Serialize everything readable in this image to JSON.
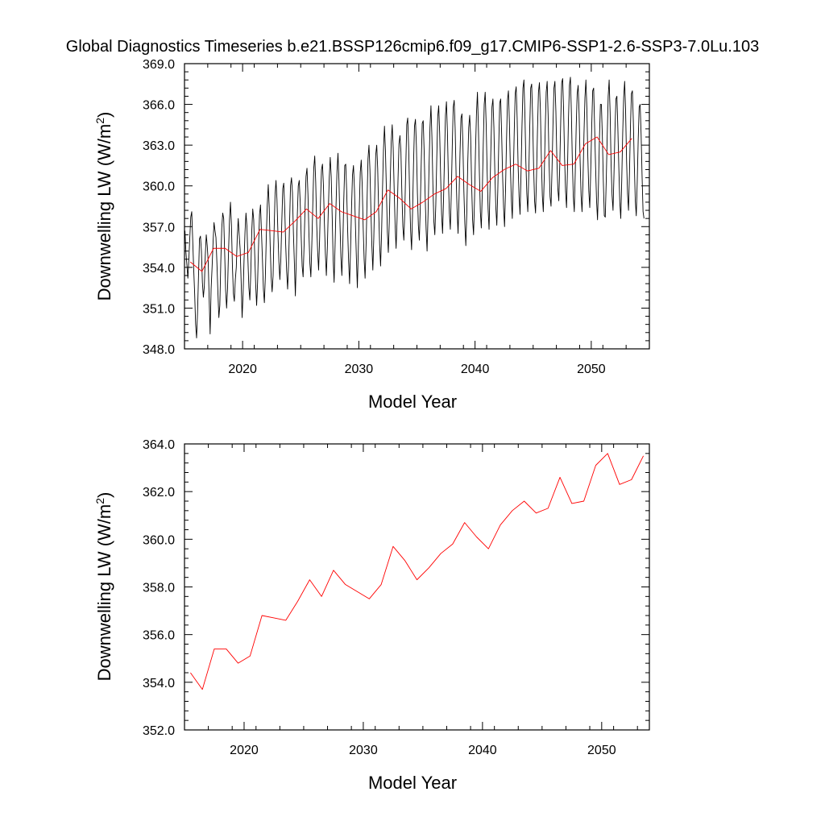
{
  "figure": {
    "title": "Global Diagnostics Timeseries b.e21.BSSP126cmip6.f09_g17.CMIP6-SSP1-2.6-SSP3-7.0Lu.103"
  },
  "colors": {
    "monthly_line": "#000000",
    "annual_line": "#ff0000",
    "frame": "#000000"
  },
  "chart_data": [
    {
      "type": "line",
      "title": "",
      "xlabel": "Model Year",
      "ylabel": "Downwelling LW (W/m²)",
      "ylabel_parts": {
        "base": "Downwelling LW (W/m",
        "sup": "2",
        "close": ")"
      },
      "xlim": [
        2015,
        2055
      ],
      "ylim": [
        348,
        369
      ],
      "xticks": [
        2020,
        2030,
        2040,
        2050
      ],
      "xtick_labels": [
        "2020",
        "2030",
        "2040",
        "2050"
      ],
      "yticks": [
        348,
        351,
        354,
        357,
        360,
        363,
        366,
        369
      ],
      "ytick_labels": [
        "348.0",
        "351.0",
        "354.0",
        "357.0",
        "360.0",
        "363.0",
        "366.0",
        "369.0"
      ],
      "grid": false,
      "series": [
        {
          "kind": "monthly",
          "x_start": 2015.04,
          "x_step": 0.0833333,
          "values": [
            356.7,
            355.1,
            354.2,
            353.2,
            354.6,
            356.2,
            357.7,
            358.1,
            356.0,
            353.9,
            352.1,
            349.8,
            348.8,
            350.7,
            353.4,
            356.1,
            356.3,
            355.2,
            352.9,
            351.8,
            352.6,
            354.9,
            356.4,
            355.6,
            354.4,
            351.7,
            349.1,
            352.4,
            354.0,
            355.8,
            357.3,
            356.7,
            356.2,
            354.3,
            352.2,
            350.3,
            351.2,
            354.4,
            356.9,
            358.0,
            357.6,
            355.1,
            352.3,
            351.0,
            352.5,
            355.2,
            357.5,
            358.8,
            357.1,
            354.1,
            352.1,
            351.5,
            353.1,
            354.0,
            356.2,
            357.6,
            356.4,
            355.3,
            353.0,
            350.3,
            352.0,
            354.5,
            356.6,
            358.0,
            357.0,
            354.6,
            352.5,
            351.6,
            353.7,
            356.7,
            358.3,
            357.5,
            355.0,
            352.8,
            351.2,
            352.9,
            355.6,
            357.9,
            358.6,
            356.6,
            354.6,
            352.4,
            351.4,
            353.3,
            356.3,
            358.6,
            360.1,
            358.4,
            355.6,
            353.3,
            352.2,
            353.4,
            356.6,
            359.3,
            360.4,
            359.0,
            356.5,
            354.4,
            353.1,
            354.6,
            357.4,
            359.8,
            360.2,
            358.4,
            355.7,
            353.7,
            352.4,
            354.3,
            357.2,
            360.0,
            360.6,
            359.5,
            356.5,
            354.3,
            351.9,
            354.8,
            357.8,
            360.0,
            360.4,
            358.8,
            356.3,
            354.1,
            353.3,
            355.6,
            358.4,
            360.7,
            361.3,
            359.4,
            356.5,
            354.3,
            353.3,
            355.7,
            358.6,
            361.3,
            362.2,
            360.3,
            357.2,
            355.2,
            353.8,
            356.0,
            359.0,
            361.2,
            361.6,
            360.0,
            357.2,
            355.0,
            353.4,
            355.4,
            358.2,
            360.6,
            362.1,
            360.7,
            357.8,
            354.6,
            352.9,
            355.6,
            358.6,
            361.1,
            362.4,
            360.4,
            357.4,
            354.8,
            353.4,
            355.7,
            359.0,
            361.5,
            361.6,
            359.6,
            356.7,
            354.4,
            352.8,
            355.4,
            358.4,
            360.8,
            361.5,
            359.8,
            357.2,
            354.7,
            352.5,
            355.3,
            358.3,
            361.0,
            361.9,
            360.1,
            357.0,
            354.6,
            353.2,
            355.6,
            358.8,
            362.0,
            363.0,
            361.2,
            358.2,
            355.6,
            353.8,
            356.2,
            359.5,
            362.3,
            363.0,
            361.3,
            358.2,
            355.7,
            354.1,
            356.4,
            359.8,
            362.7,
            364.4,
            362.6,
            359.7,
            356.6,
            355.1,
            357.4,
            360.5,
            363.3,
            364.5,
            362.8,
            359.8,
            357.1,
            355.4,
            357.5,
            360.5,
            363.1,
            363.7,
            362.5,
            359.4,
            357.0,
            356.0,
            358.1,
            361.4,
            364.5,
            365.0,
            362.8,
            359.3,
            356.7,
            355.3,
            358.0,
            361.6,
            364.4,
            364.9,
            362.9,
            359.5,
            357.1,
            356.0,
            358.5,
            361.8,
            364.6,
            364.8,
            362.5,
            359.3,
            356.8,
            355.2,
            357.9,
            361.3,
            364.3,
            365.9,
            363.6,
            360.1,
            357.4,
            356.4,
            358.6,
            362.0,
            365.1,
            365.9,
            363.9,
            360.7,
            357.9,
            356.5,
            359.0,
            362.2,
            365.2,
            366.2,
            364.0,
            360.6,
            358.0,
            356.8,
            359.4,
            362.9,
            365.8,
            366.3,
            364.2,
            360.7,
            358.2,
            356.5,
            359.1,
            362.4,
            365.0,
            365.3,
            363.0,
            359.6,
            357.2,
            355.6,
            358.0,
            361.7,
            364.3,
            365.2,
            363.6,
            360.1,
            357.5,
            356.4,
            359.0,
            362.6,
            365.3,
            366.9,
            364.3,
            361.0,
            358.1,
            356.9,
            359.5,
            363.0,
            366.0,
            366.9,
            364.6,
            361.1,
            358.3,
            356.8,
            359.8,
            363.1,
            365.8,
            366.4,
            364.3,
            360.9,
            358.4,
            357.1,
            359.6,
            363.0,
            366.1,
            366.4,
            363.8,
            360.7,
            358.4,
            357.0,
            359.7,
            363.3,
            366.3,
            367.0,
            364.7,
            361.4,
            359.0,
            357.6,
            360.5,
            364.0,
            366.8,
            367.3,
            365.0,
            361.5,
            359.2,
            357.9,
            360.9,
            364.4,
            367.2,
            367.8,
            365.3,
            361.8,
            359.4,
            358.1,
            360.8,
            364.3,
            367.2,
            367.5,
            365.0,
            361.4,
            358.9,
            358.0,
            360.7,
            364.1,
            366.9,
            367.6,
            365.6,
            362.0,
            359.3,
            358.1,
            360.7,
            364.2,
            366.9,
            367.7,
            365.2,
            361.6,
            359.2,
            358.5,
            361.2,
            364.5,
            367.2,
            367.7,
            365.5,
            362.0,
            359.8,
            358.9,
            361.5,
            364.8,
            367.6,
            367.9,
            365.5,
            362.0,
            359.6,
            358.4,
            361.3,
            365.0,
            367.4,
            368.0,
            365.4,
            361.8,
            359.2,
            358.1,
            361.0,
            364.4,
            366.8,
            367.4,
            365.3,
            361.9,
            359.3,
            358.1,
            360.4,
            363.8,
            366.5,
            367.8,
            365.7,
            362.1,
            359.6,
            358.4,
            361.2,
            364.4,
            367.0,
            367.2,
            364.3,
            361.4,
            358.9,
            357.5,
            360.2,
            363.6,
            366.0,
            366.0,
            363.6,
            360.3,
            357.8,
            357.7,
            360.4,
            363.7,
            366.6,
            367.8,
            365.4,
            361.6,
            359.3,
            358.2,
            360.9,
            364.1,
            366.4,
            366.6,
            364.2,
            361.3,
            358.8,
            357.6,
            360.4,
            363.9,
            366.5,
            367.7,
            365.5,
            361.8,
            359.4,
            358.2,
            361.0,
            364.4,
            366.8,
            367.0,
            364.7,
            361.5,
            358.9,
            357.8,
            360.3,
            363.4,
            365.8,
            366.0,
            363.8,
            360.7,
            358.1,
            357.6
          ]
        },
        {
          "kind": "annual",
          "x": [
            2015.5,
            2016.5,
            2017.5,
            2018.5,
            2019.5,
            2020.5,
            2021.5,
            2022.5,
            2023.5,
            2024.5,
            2025.5,
            2026.5,
            2027.5,
            2028.5,
            2029.5,
            2030.5,
            2031.5,
            2032.5,
            2033.5,
            2034.5,
            2035.5,
            2036.5,
            2037.5,
            2038.5,
            2039.5,
            2040.5,
            2041.5,
            2042.5,
            2043.5,
            2044.5,
            2045.5,
            2046.5,
            2047.5,
            2048.5,
            2049.5,
            2050.5,
            2051.5,
            2052.5,
            2053.5
          ],
          "values": [
            354.4,
            353.7,
            355.4,
            355.4,
            354.8,
            355.1,
            356.8,
            356.7,
            356.6,
            357.4,
            358.3,
            357.6,
            358.7,
            358.1,
            357.8,
            357.5,
            358.1,
            359.7,
            359.1,
            358.3,
            358.8,
            359.4,
            359.8,
            360.7,
            360.1,
            359.6,
            360.6,
            361.2,
            361.6,
            361.1,
            361.3,
            362.6,
            361.5,
            361.6,
            363.1,
            363.6,
            362.3,
            362.5,
            363.5
          ]
        }
      ]
    },
    {
      "type": "line",
      "title": "",
      "xlabel": "Model Year",
      "ylabel": "Downwelling LW (W/m²)",
      "ylabel_parts": {
        "base": "Downwelling LW (W/m",
        "sup": "2",
        "close": ")"
      },
      "xlim": [
        2015,
        2054
      ],
      "ylim": [
        352,
        364
      ],
      "xticks": [
        2020,
        2030,
        2040,
        2050
      ],
      "xtick_labels": [
        "2020",
        "2030",
        "2040",
        "2050"
      ],
      "yticks": [
        352,
        354,
        356,
        358,
        360,
        362,
        364
      ],
      "ytick_labels": [
        "352.0",
        "354.0",
        "356.0",
        "358.0",
        "360.0",
        "362.0",
        "364.0"
      ],
      "grid": false,
      "series": [
        {
          "kind": "annual",
          "x": [
            2015.5,
            2016.5,
            2017.5,
            2018.5,
            2019.5,
            2020.5,
            2021.5,
            2022.5,
            2023.5,
            2024.5,
            2025.5,
            2026.5,
            2027.5,
            2028.5,
            2029.5,
            2030.5,
            2031.5,
            2032.5,
            2033.5,
            2034.5,
            2035.5,
            2036.5,
            2037.5,
            2038.5,
            2039.5,
            2040.5,
            2041.5,
            2042.5,
            2043.5,
            2044.5,
            2045.5,
            2046.5,
            2047.5,
            2048.5,
            2049.5,
            2050.5,
            2051.5,
            2052.5,
            2053.5
          ],
          "values": [
            354.4,
            353.7,
            355.4,
            355.4,
            354.8,
            355.1,
            356.8,
            356.7,
            356.6,
            357.4,
            358.3,
            357.6,
            358.7,
            358.1,
            357.8,
            357.5,
            358.1,
            359.7,
            359.1,
            358.3,
            358.8,
            359.4,
            359.8,
            360.7,
            360.1,
            359.6,
            360.6,
            361.2,
            361.6,
            361.1,
            361.3,
            362.6,
            361.5,
            361.6,
            363.1,
            363.6,
            362.3,
            362.5,
            363.5
          ]
        }
      ]
    }
  ]
}
